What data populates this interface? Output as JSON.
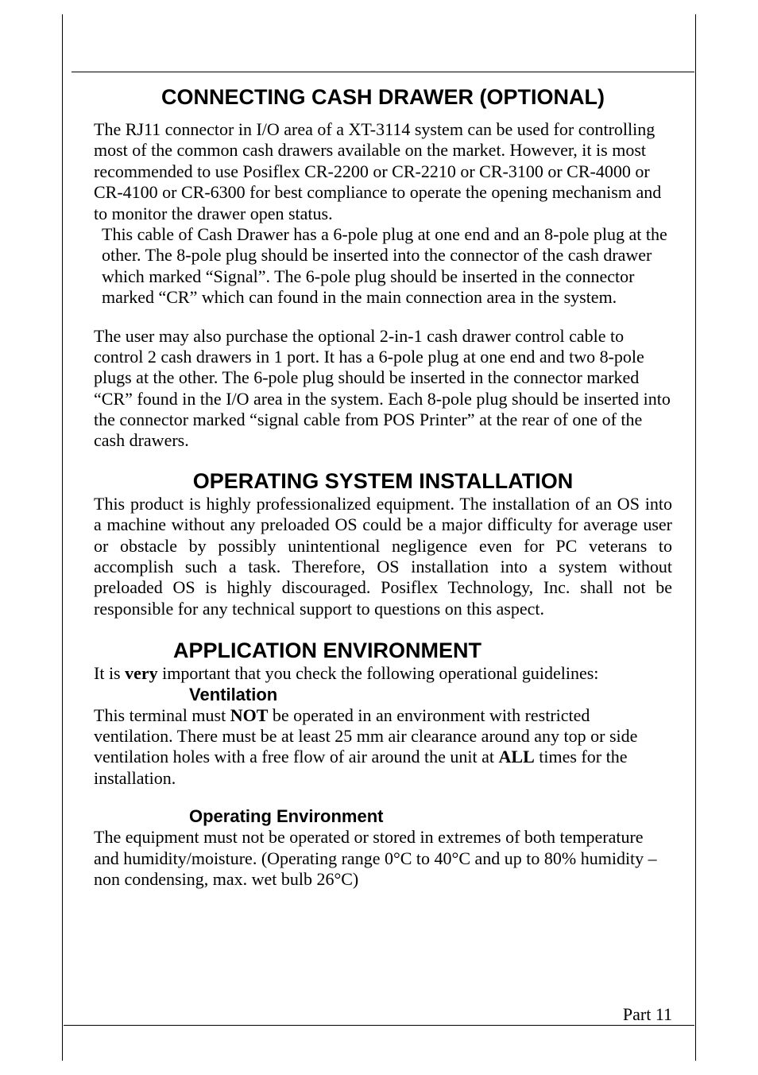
{
  "page": {
    "part_label": "Part 11"
  },
  "section_cashdrawer": {
    "title": "CONNECTING CASH DRAWER (OPTIONAL)",
    "para1": "The RJ11 connector in I/O area of a XT-3114 system can be used for controlling most of the common cash drawers available on the market. However, it is most recommended to use Posiflex CR-2200 or CR-2210 or CR-3100 or CR-4000 or CR-4100 or CR-6300 for best compliance to operate the opening mechanism and to monitor the drawer open status.",
    "para1b": "This cable of Cash Drawer has a 6-pole plug at one end and an 8-pole plug at the other. The 8-pole plug should be inserted into the connector of the cash drawer which marked “Signal”. The 6-pole plug should be inserted in the connector marked “CR” which can found in the main connection area in the system.",
    "para2": "The user may also purchase the optional 2-in-1 cash drawer control cable to control 2 cash drawers in 1 port. It has a 6-pole plug at one end and two 8-pole plugs at the other. The 6-pole plug should be inserted in the connector marked “CR” found in the I/O area in the system. Each 8-pole plug should be inserted into the connector marked “signal cable from POS Printer” at the rear of one of the cash drawers."
  },
  "section_os": {
    "title": "OPERATING SYSTEM INSTALLATION",
    "para1": "This product is highly professionalized equipment. The installation of an OS into a machine without any preloaded OS could be a major difficulty for average user or obstacle by possibly unintentional negligence even for PC veterans to accomplish such a task. Therefore, OS installation into a system without preloaded OS is highly discouraged. Posiflex Technology, Inc. shall not be responsible for any technical support to questions on this aspect."
  },
  "section_appenv": {
    "title": "APPLICATION ENVIRONMENT",
    "intro_prefix": "It is ",
    "intro_bold": "very",
    "intro_suffix": " important that you check the following operational guidelines:",
    "ventilation": {
      "title": "Ventilation",
      "p_a": "This terminal must ",
      "p_b_bold": "NOT",
      "p_c": " be operated in an environment with restricted ventilation. There must be at least 25 mm air clearance around any top or side ventilation holes with a free flow of air around the unit at ",
      "p_d_bold": "ALL",
      "p_e": " times for the installation."
    },
    "operating_env": {
      "title": "Operating Environment",
      "para": "The equipment must not be operated or stored in extremes of both temperature and humidity/moisture. (Operating range 0°C to 40°C and up to 80% humidity – non condensing, max. wet bulb 26°C)"
    }
  }
}
